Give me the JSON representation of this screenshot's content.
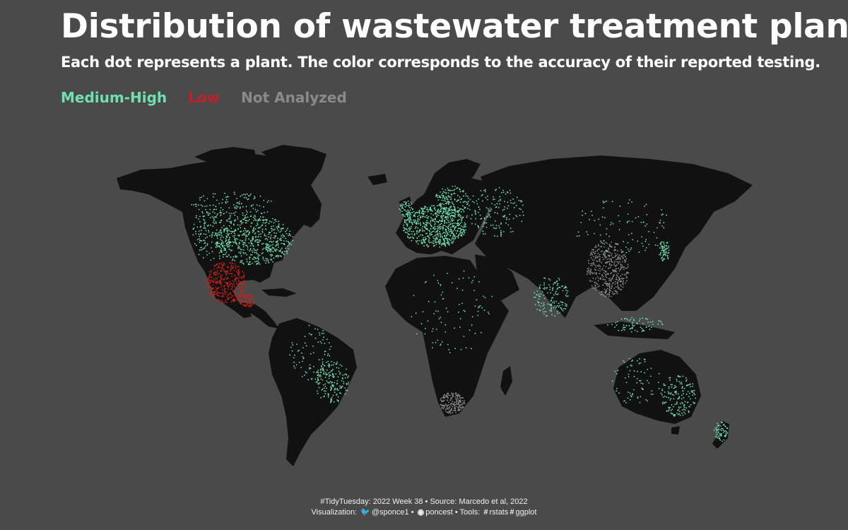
{
  "title": "Distribution of wastewater treatment plants",
  "subtitle": "Each dot represents a plant. The color corresponds to the accuracy of their reported testing.",
  "legend": [
    {
      "label": "Medium-High",
      "color": "#6fe0b0"
    },
    {
      "label": "Low",
      "color": "#c0202a"
    },
    {
      "label": "Not Analyzed",
      "color": "#8a8a8a"
    }
  ],
  "colors": {
    "background": "#4a4a4a",
    "land": "#111111",
    "medium_high": "#6fe0b0",
    "low": "#c8201e",
    "not_analyzed": "#8a8a8a"
  },
  "caption": {
    "line1": "#TidyTuesday: 2022 Week 38 • Source: Marcedo et al, 2022",
    "line2_prefix": "Visualization:",
    "twitter_handle": "@sponce1",
    "github_handle": "poncest",
    "tools_label": "Tools:",
    "tool1": "rstats",
    "tool2": "ggplot",
    "twitter_icon": "twitter-icon",
    "github_icon": "github-icon",
    "hash_icon": "hash-icon"
  }
}
